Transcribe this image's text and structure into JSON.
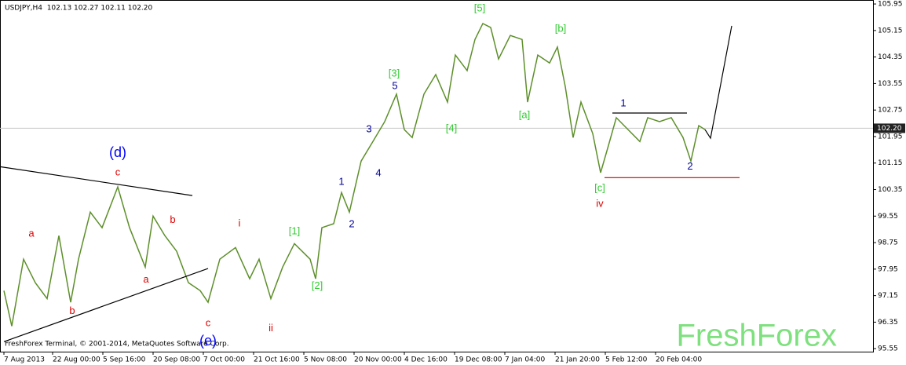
{
  "chart_data": {
    "type": "line",
    "title": "USDJPY,H4  102.13 102.27 102.11 102.20",
    "footer": "FreshForex Terminal, © 2001-2014, MetaQuotes Software Corp.",
    "watermark": "FreshForex",
    "color": "#5d8f2a",
    "x": [
      5,
      15,
      30,
      45,
      60,
      75,
      90,
      100,
      115,
      130,
      150,
      165,
      185,
      195,
      210,
      225,
      240,
      255,
      265,
      280,
      300,
      318,
      330,
      345,
      360,
      375,
      395,
      402,
      410,
      425,
      435,
      445,
      460,
      475,
      490,
      505,
      515,
      525,
      540,
      555,
      570,
      580,
      595,
      605,
      615,
      625,
      635,
      650,
      665,
      672,
      685,
      700,
      710,
      720,
      730,
      740,
      755,
      765,
      775,
      785,
      800,
      815,
      825,
      840,
      855,
      870,
      880,
      890,
      898
    ],
    "values": [
      97.3,
      96.23,
      98.25,
      97.54,
      97.06,
      98.96,
      96.95,
      98.25,
      99.67,
      99.2,
      100.43,
      99.2,
      98.01,
      99.55,
      98.96,
      98.49,
      97.54,
      97.3,
      96.95,
      98.25,
      98.6,
      97.66,
      98.25,
      97.06,
      98.01,
      98.72,
      98.25,
      97.66,
      99.2,
      99.32,
      100.26,
      99.67,
      101.21,
      101.8,
      102.4,
      103.23,
      102.16,
      101.92,
      103.23,
      103.82,
      102.99,
      104.41,
      103.94,
      104.88,
      105.36,
      105.24,
      104.29,
      105.0,
      104.88,
      102.99,
      104.41,
      104.17,
      104.65,
      103.46,
      101.92,
      102.99,
      102.04,
      100.86,
      101.68,
      102.52,
      102.16,
      101.8,
      102.52,
      102.4,
      102.52,
      101.92,
      101.21,
      102.28,
      102.16
    ],
    "xlim": [
      0,
      1112
    ],
    "xticks": [
      {
        "value": 5,
        "label": "7 Aug 2013"
      },
      {
        "value": 67,
        "label": "22 Aug 00:00"
      },
      {
        "value": 131,
        "label": "5 Sep 16:00"
      },
      {
        "value": 195,
        "label": "20 Sep 08:00"
      },
      {
        "value": 259,
        "label": "7 Oct 00:00"
      },
      {
        "value": 323,
        "label": "21 Oct 16:00"
      },
      {
        "value": 387,
        "label": "5 Nov 08:00"
      },
      {
        "value": 451,
        "label": "20 Nov 00:00"
      },
      {
        "value": 515,
        "label": "4 Dec 16:00"
      },
      {
        "value": 579,
        "label": "19 Dec 08:00"
      },
      {
        "value": 643,
        "label": "7 Jan 04:00"
      },
      {
        "value": 707,
        "label": "21 Jan 20:00"
      },
      {
        "value": 771,
        "label": "5 Feb 12:00"
      },
      {
        "value": 835,
        "label": "20 Feb 04:00"
      }
    ],
    "ylim": [
      95.46,
      106.07
    ],
    "yticks": [
      105.95,
      105.15,
      104.35,
      103.55,
      102.75,
      101.95,
      101.15,
      100.35,
      99.55,
      98.75,
      97.95,
      97.15,
      96.35,
      95.55
    ],
    "current_price": {
      "value": 102.2,
      "label": "102.20"
    },
    "annotations": [
      {
        "text": "(d)",
        "x": 150,
        "y": 101.45,
        "color": "#0000ff",
        "size": "large"
      },
      {
        "text": "c",
        "x": 150,
        "y": 100.86,
        "color": "#e00000"
      },
      {
        "text": "a",
        "x": 40,
        "y": 99.01,
        "color": "#e00000"
      },
      {
        "text": "b",
        "x": 92,
        "y": 96.68,
        "color": "#e00000"
      },
      {
        "text": "a",
        "x": 186,
        "y": 97.63,
        "color": "#e00000"
      },
      {
        "text": "b",
        "x": 220,
        "y": 99.43,
        "color": "#e00000"
      },
      {
        "text": "c",
        "x": 265,
        "y": 96.31,
        "color": "#e00000"
      },
      {
        "text": "(e)",
        "x": 265,
        "y": 95.76,
        "color": "#0000ff",
        "size": "large"
      },
      {
        "text": "i",
        "x": 305,
        "y": 99.32,
        "color": "#e00000"
      },
      {
        "text": "ii",
        "x": 345,
        "y": 96.16,
        "color": "#e00000"
      },
      {
        "text": "[1]",
        "x": 375,
        "y": 99.08,
        "color": "#33cc33"
      },
      {
        "text": "[2]",
        "x": 404,
        "y": 97.44,
        "color": "#33cc33"
      },
      {
        "text": "1",
        "x": 435,
        "y": 100.57,
        "color": "#000099"
      },
      {
        "text": "2",
        "x": 448,
        "y": 99.29,
        "color": "#000099"
      },
      {
        "text": "3",
        "x": 470,
        "y": 102.16,
        "color": "#000099"
      },
      {
        "text": "4",
        "x": 482,
        "y": 100.83,
        "color": "#000099"
      },
      {
        "text": "5",
        "x": 503,
        "y": 103.46,
        "color": "#000099"
      },
      {
        "text": "[3]",
        "x": 502,
        "y": 103.84,
        "color": "#33cc33"
      },
      {
        "text": "[4]",
        "x": 575,
        "y": 102.18,
        "color": "#33cc33"
      },
      {
        "text": "[5]",
        "x": 611,
        "y": 105.81,
        "color": "#33cc33"
      },
      {
        "text": "[a]",
        "x": 668,
        "y": 102.59,
        "color": "#33cc33"
      },
      {
        "text": "[b]",
        "x": 714,
        "y": 105.19,
        "color": "#33cc33"
      },
      {
        "text": "[c]",
        "x": 764,
        "y": 100.38,
        "color": "#33cc33"
      },
      {
        "text": "iv",
        "x": 764,
        "y": 99.91,
        "color": "#e00000"
      },
      {
        "text": "1",
        "x": 794,
        "y": 102.94,
        "color": "#000099"
      },
      {
        "text": "2",
        "x": 879,
        "y": 101.04,
        "color": "#000099"
      }
    ],
    "lines": [
      {
        "color": "#000000",
        "x": [
          0,
          245
        ],
        "y": [
          101.04,
          100.17
        ]
      },
      {
        "color": "#000000",
        "x": [
          5,
          265
        ],
        "y": [
          95.76,
          97.97
        ]
      },
      {
        "color": "#000000",
        "x": [
          780,
          875
        ],
        "y": [
          102.66,
          102.66
        ]
      },
      {
        "color": "#cc0000",
        "x": [
          770,
          942
        ],
        "y": [
          100.71,
          100.71
        ]
      },
      {
        "color": "#000000",
        "x": [
          898,
          905,
          932
        ],
        "y": [
          102.16,
          101.9,
          105.29
        ]
      }
    ]
  }
}
